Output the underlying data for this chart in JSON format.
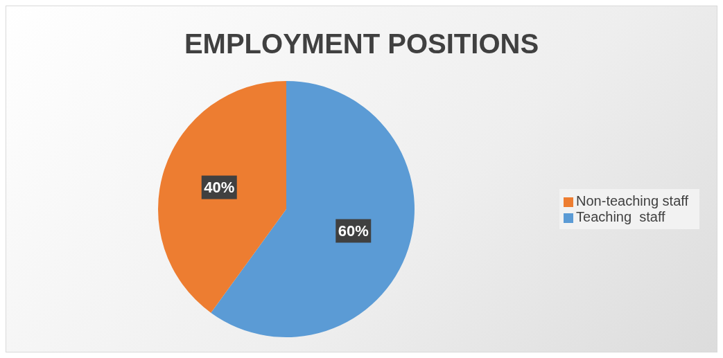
{
  "chart_data": {
    "type": "pie",
    "title": "EMPLOYMENT POSITIONS",
    "categories": [
      "Teaching  staff",
      "Non-teaching staff"
    ],
    "values": [
      60,
      40
    ],
    "colors": [
      "#5b9bd5",
      "#ed7d31"
    ],
    "value_labels": [
      "60%",
      "40%"
    ],
    "legend": "right"
  }
}
